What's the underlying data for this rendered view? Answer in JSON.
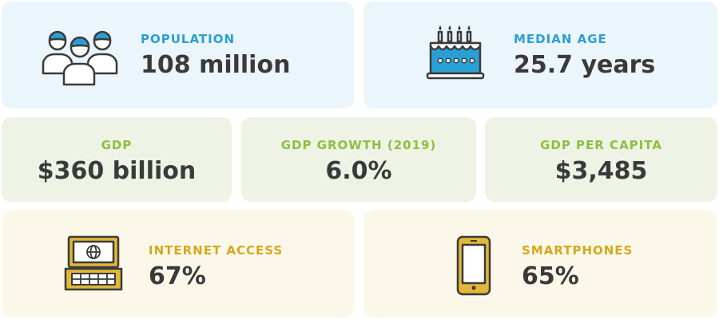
{
  "colors": {
    "blue_label": "#2a9fd6",
    "green_label": "#8dbf3f",
    "yellow_label": "#d4a81c",
    "value_text": "#3a3a3a",
    "blue_bg": "#eaf5fc",
    "green_bg": "#eef3e6",
    "yellow_bg": "#fbf8ea"
  },
  "stats": {
    "population": {
      "label": "POPULATION",
      "value": "108 million",
      "icon": "people-icon"
    },
    "median_age": {
      "label": "MEDIAN AGE",
      "value": "25.7 years",
      "icon": "birthday-cake-icon"
    },
    "gdp": {
      "label": "GDP",
      "value": "$360 billion"
    },
    "gdp_growth": {
      "label": "GDP GROWTH (2019)",
      "value": "6.0%"
    },
    "gdp_per_capita": {
      "label": "GDP PER CAPITA",
      "value": "$3,485"
    },
    "internet_access": {
      "label": "INTERNET ACCESS",
      "value": "67%",
      "icon": "laptop-globe-icon"
    },
    "smartphones": {
      "label": "SMARTPHONES",
      "value": "65%",
      "icon": "smartphone-icon"
    }
  }
}
